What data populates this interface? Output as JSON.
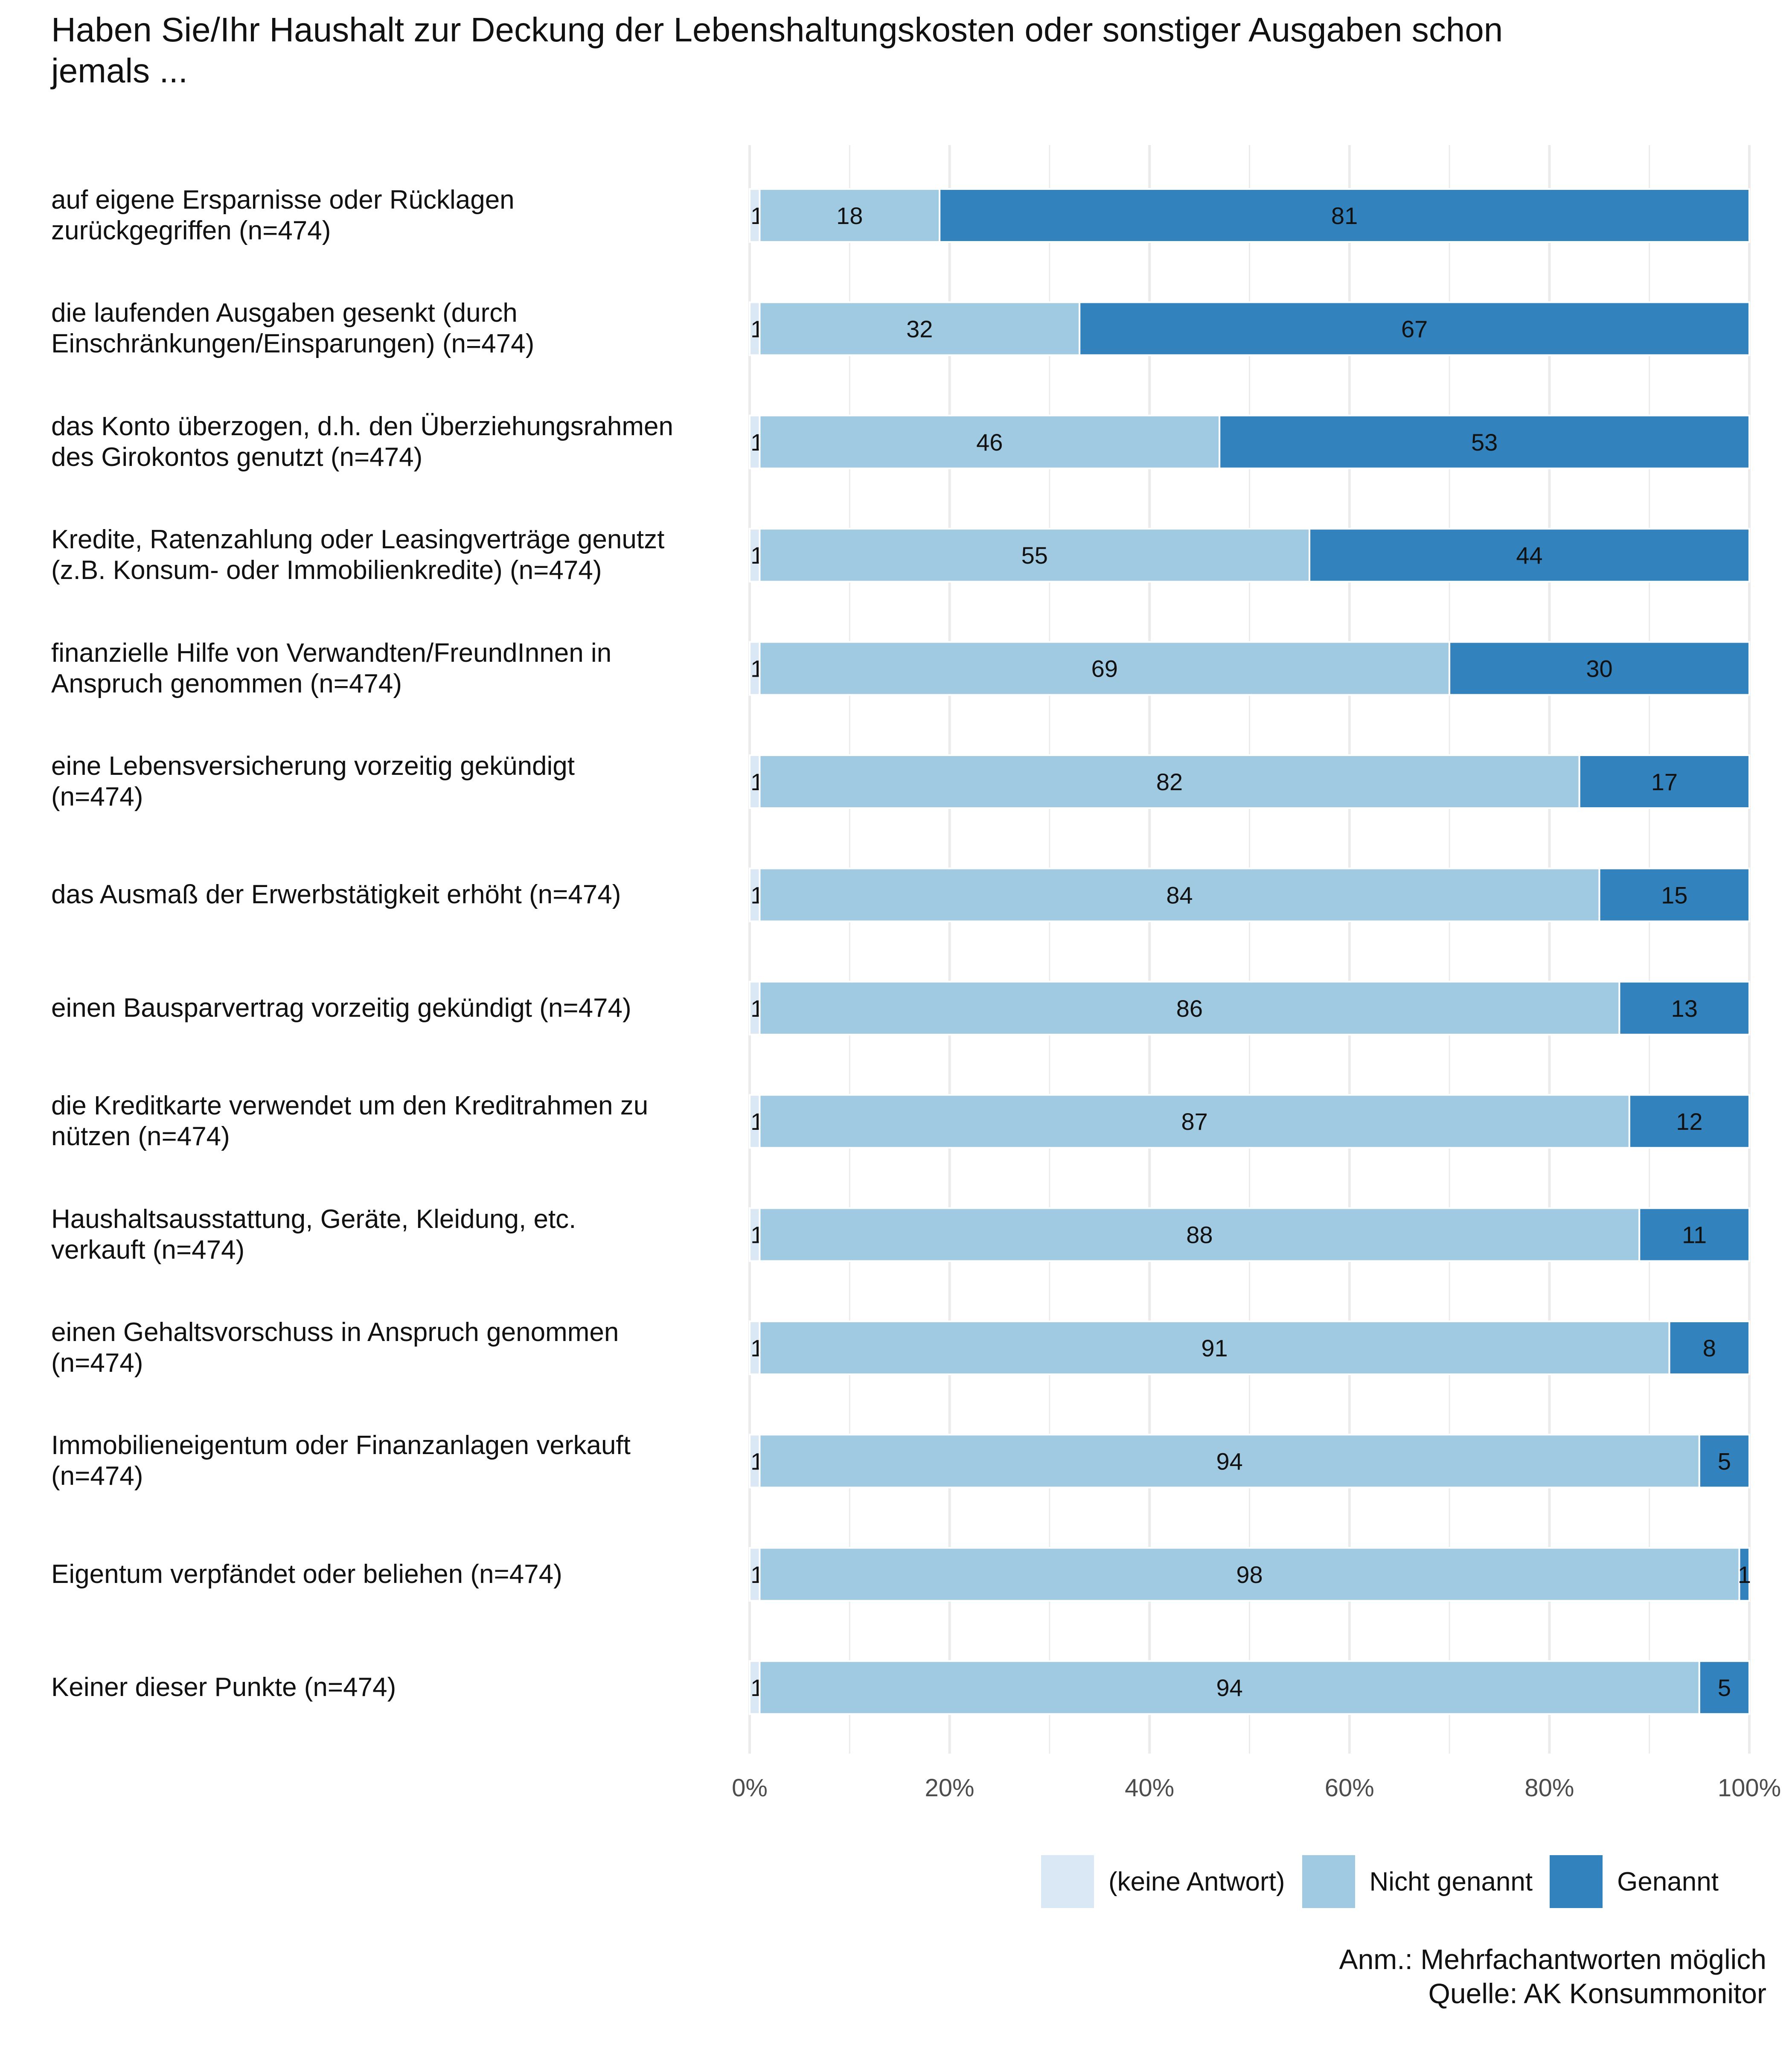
{
  "title_lines": [
    "Haben Sie/Ihr Haushalt zur Deckung der Lebenshaltungskosten oder sonstiger Ausgaben schon",
    "jemals ..."
  ],
  "colors": {
    "keine_antwort": "#DAE7F4",
    "nicht_genannt": "#9FCAE1",
    "genannt": "#3282BD",
    "grid": "#EBEBEB",
    "axis_text": "#4D4D4D"
  },
  "chart_data": {
    "type": "bar",
    "orientation": "horizontal",
    "stacked": true,
    "xlim": [
      0,
      100
    ],
    "x_ticks": [
      "0%",
      "20%",
      "40%",
      "60%",
      "80%",
      "100%"
    ],
    "legend_position": "bottom-right",
    "series": [
      {
        "name": "(keine Antwort)",
        "values": [
          1,
          1,
          1,
          1,
          1,
          1,
          1,
          1,
          1,
          1,
          1,
          1,
          1,
          1
        ]
      },
      {
        "name": "Nicht genannt",
        "values": [
          18,
          32,
          46,
          55,
          69,
          82,
          84,
          86,
          87,
          88,
          91,
          94,
          98,
          94
        ]
      },
      {
        "name": "Genannt",
        "values": [
          81,
          67,
          53,
          44,
          30,
          17,
          15,
          13,
          12,
          11,
          8,
          5,
          1,
          5
        ]
      }
    ],
    "categories": [
      {
        "lines": [
          "auf eigene Ersparnisse oder Rücklagen",
          "zurückgegriffen (n=474)"
        ]
      },
      {
        "lines": [
          "die laufenden Ausgaben gesenkt (durch",
          "Einschränkungen/Einsparungen) (n=474)"
        ]
      },
      {
        "lines": [
          "das Konto überzogen, d.h. den Überziehungsrahmen",
          "des Girokontos genutzt (n=474)"
        ]
      },
      {
        "lines": [
          "Kredite, Ratenzahlung oder Leasingverträge genutzt",
          "(z.B. Konsum- oder Immobilienkredite) (n=474)"
        ]
      },
      {
        "lines": [
          "finanzielle Hilfe von Verwandten/FreundInnen in",
          "Anspruch genommen (n=474)"
        ]
      },
      {
        "lines": [
          "eine Lebensversicherung vorzeitig gekündigt",
          "(n=474)"
        ]
      },
      {
        "lines": [
          "das Ausmaß der Erwerbstätigkeit erhöht (n=474)"
        ]
      },
      {
        "lines": [
          "einen Bausparvertrag vorzeitig gekündigt (n=474)"
        ]
      },
      {
        "lines": [
          "die Kreditkarte verwendet um den Kreditrahmen zu",
          "nützen (n=474)"
        ]
      },
      {
        "lines": [
          "Haushaltsausstattung, Geräte, Kleidung, etc.",
          "verkauft (n=474)"
        ]
      },
      {
        "lines": [
          "einen Gehaltsvorschuss in Anspruch genommen",
          "(n=474)"
        ]
      },
      {
        "lines": [
          "Immobilieneigentum oder Finanzanlagen verkauft",
          "(n=474)"
        ]
      },
      {
        "lines": [
          "Eigentum verpfändet oder beliehen (n=474)"
        ]
      },
      {
        "lines": [
          "Keiner dieser Punkte (n=474)"
        ]
      }
    ]
  },
  "legend": [
    {
      "label": "(keine Antwort)",
      "color_key": "keine_antwort"
    },
    {
      "label": "Nicht genannt",
      "color_key": "nicht_genannt"
    },
    {
      "label": "Genannt",
      "color_key": "genannt"
    }
  ],
  "note": {
    "line1": "Anm.: Mehrfachantworten möglich",
    "line2": "Quelle: AK Konsummonitor"
  }
}
